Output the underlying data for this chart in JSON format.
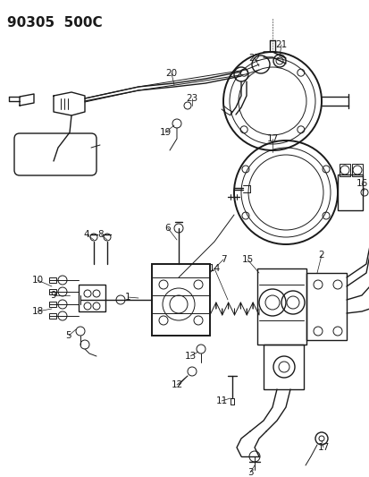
{
  "title": "90305  500C",
  "bg_color": "#ffffff",
  "line_color": "#1a1a1a",
  "title_fontsize": 11,
  "label_fontsize": 7.5,
  "fig_width": 4.14,
  "fig_height": 5.33,
  "dpi": 100
}
